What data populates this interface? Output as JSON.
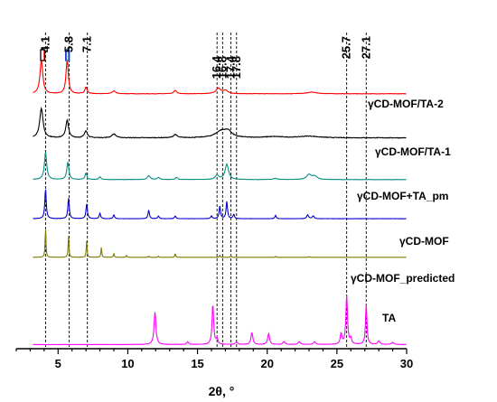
{
  "chart_data": {
    "type": "line",
    "title": "",
    "xlabel": "2θ, °",
    "ylabel": "",
    "xlim": [
      2,
      30
    ],
    "x_ticks": [
      5,
      10,
      15,
      20,
      25,
      30
    ],
    "grid": false,
    "reference_lines": [
      4.1,
      5.8,
      7.1,
      16.4,
      16.8,
      17.4,
      17.8,
      25.7,
      27.1
    ],
    "reference_labels": [
      "4.1",
      "5.8",
      "7.1",
      "16.4",
      "16.8",
      "17.4",
      "17.8",
      "25.7",
      "27.1"
    ],
    "series": [
      {
        "name": "γCD-MOF/TA-2",
        "color": "#ff0000",
        "baseline": 0.07,
        "noise": 0.006,
        "peaks": [
          [
            3.8,
            0.62,
            0.12
          ],
          [
            5.65,
            0.62,
            0.1
          ],
          [
            7.0,
            0.12,
            0.1
          ],
          [
            9.0,
            0.05,
            0.15
          ],
          [
            13.4,
            0.06,
            0.12
          ],
          [
            16.5,
            0.1,
            0.2
          ],
          [
            17.0,
            0.06,
            0.2
          ],
          [
            23.2,
            0.03,
            0.4
          ]
        ]
      },
      {
        "name": "γCD-MOF/TA-1",
        "color": "#000000",
        "baseline": 0.04,
        "noise": 0.012,
        "peaks": [
          [
            3.8,
            0.55,
            0.14
          ],
          [
            5.65,
            0.32,
            0.12
          ],
          [
            7.0,
            0.13,
            0.12
          ],
          [
            9.0,
            0.07,
            0.18
          ],
          [
            13.4,
            0.06,
            0.15
          ],
          [
            16.7,
            0.12,
            0.5
          ],
          [
            17.2,
            0.1,
            0.3
          ],
          [
            20.5,
            0.02,
            0.8
          ],
          [
            23.0,
            0.03,
            0.8
          ]
        ]
      },
      {
        "name": "γCD-MOF+TA_pm",
        "color": "#0a8f84",
        "baseline": 0.02,
        "noise": 0.006,
        "peaks": [
          [
            4.1,
            0.5,
            0.1
          ],
          [
            5.7,
            0.32,
            0.09
          ],
          [
            7.0,
            0.12,
            0.08
          ],
          [
            8.0,
            0.05,
            0.08
          ],
          [
            11.5,
            0.07,
            0.12
          ],
          [
            12.2,
            0.04,
            0.1
          ],
          [
            13.5,
            0.04,
            0.1
          ],
          [
            16.4,
            0.08,
            0.15
          ],
          [
            17.1,
            0.28,
            0.15
          ],
          [
            20.6,
            0.02,
            0.2
          ],
          [
            23.0,
            0.09,
            0.2
          ],
          [
            23.4,
            0.06,
            0.2
          ]
        ]
      },
      {
        "name": "γCD-MOF",
        "color": "#0000cc",
        "baseline": 0.015,
        "noise": 0.004,
        "peaks": [
          [
            4.1,
            0.55,
            0.06
          ],
          [
            5.75,
            0.38,
            0.06
          ],
          [
            7.05,
            0.27,
            0.06
          ],
          [
            8.0,
            0.1,
            0.06
          ],
          [
            9.0,
            0.07,
            0.06
          ],
          [
            11.5,
            0.16,
            0.06
          ],
          [
            12.2,
            0.05,
            0.06
          ],
          [
            13.4,
            0.05,
            0.06
          ],
          [
            16.0,
            0.05,
            0.06
          ],
          [
            16.6,
            0.23,
            0.06
          ],
          [
            17.1,
            0.32,
            0.06
          ],
          [
            17.6,
            0.08,
            0.06
          ],
          [
            20.6,
            0.06,
            0.06
          ],
          [
            22.9,
            0.07,
            0.08
          ],
          [
            23.3,
            0.05,
            0.08
          ]
        ]
      },
      {
        "name": "γCD-MOF_predicted",
        "color": "#7a7a00",
        "baseline": 0.003,
        "noise": 0.0,
        "peaks": [
          [
            4.1,
            0.55,
            0.035
          ],
          [
            5.75,
            0.4,
            0.035
          ],
          [
            7.05,
            0.3,
            0.035
          ],
          [
            8.1,
            0.18,
            0.035
          ],
          [
            9.0,
            0.07,
            0.035
          ],
          [
            9.9,
            0.04,
            0.035
          ],
          [
            11.5,
            0.02,
            0.035
          ],
          [
            12.2,
            0.02,
            0.035
          ],
          [
            13.4,
            0.07,
            0.035
          ],
          [
            16.6,
            0.04,
            0.035
          ],
          [
            17.4,
            0.03,
            0.035
          ],
          [
            20.6,
            0.015,
            0.035
          ],
          [
            23.0,
            0.015,
            0.035
          ]
        ]
      },
      {
        "name": "TA",
        "color": "#ff00ff",
        "baseline": 0.01,
        "noise": 0.004,
        "peaks": [
          [
            11.95,
            0.6,
            0.08
          ],
          [
            14.3,
            0.05,
            0.08
          ],
          [
            16.1,
            0.74,
            0.07
          ],
          [
            16.4,
            0.1,
            0.07
          ],
          [
            17.8,
            0.04,
            0.1
          ],
          [
            18.9,
            0.22,
            0.08
          ],
          [
            20.1,
            0.2,
            0.08
          ],
          [
            21.2,
            0.05,
            0.1
          ],
          [
            22.3,
            0.05,
            0.1
          ],
          [
            23.4,
            0.05,
            0.1
          ],
          [
            25.3,
            0.2,
            0.07
          ],
          [
            25.7,
            0.9,
            0.07
          ],
          [
            26.0,
            0.1,
            0.07
          ],
          [
            27.1,
            0.74,
            0.06
          ],
          [
            28.0,
            0.06,
            0.1
          ],
          [
            29.0,
            0.04,
            0.1
          ]
        ]
      }
    ]
  }
}
